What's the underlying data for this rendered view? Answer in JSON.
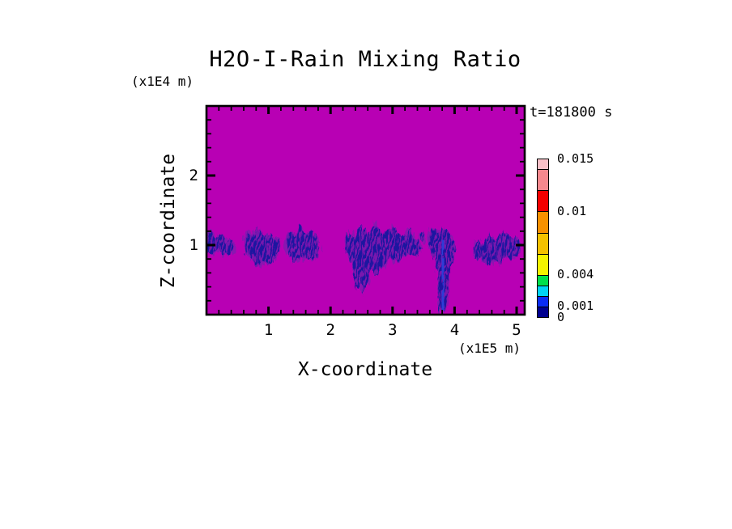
{
  "title": "H2O-I-Rain Mixing Ratio",
  "timestamp": "t=181800 s",
  "colors": {
    "field_background": "#b800b4",
    "rain_dark": "#1d18a0",
    "rain_fringe": "#8a14b0",
    "rain_bright_core": "#2e3cd6",
    "frame": "#000000",
    "text": "#000000"
  },
  "chart_data": {
    "type": "heatmap",
    "title": "H2O-I-Rain Mixing Ratio",
    "time_annotation": "t=181800 s",
    "xlabel": "X-coordinate",
    "ylabel": "Z-coordinate",
    "x_unit_label": "(x1E5 m)",
    "y_unit_label": "(x1E4 m)",
    "xlim": [
      0,
      5.13
    ],
    "ylim": [
      0,
      3.0
    ],
    "x_tick_values": [
      1,
      2,
      3,
      4,
      5
    ],
    "x_tick_labels": [
      "1",
      "2",
      "3",
      "4",
      "5"
    ],
    "y_tick_values": [
      1,
      2
    ],
    "y_tick_labels": [
      "1",
      "2"
    ],
    "minor_tick_step": 0.2,
    "grid": false,
    "legend_position": "right-colorbar",
    "field_note": "magenta background = near-zero rain mixing ratio; dark blue cells = rain regions around z=1",
    "colorbar": {
      "value_max": 0.015,
      "levels_bottom_to_top": [
        0,
        0.001,
        0.002,
        0.003,
        0.004,
        0.006,
        0.008,
        0.01,
        0.012,
        0.014,
        0.015
      ],
      "segment_colors_bottom_to_top": [
        "#00008f",
        "#0a2cf4",
        "#00d4f4",
        "#00e04c",
        "#f4f400",
        "#f4c100",
        "#f79100",
        "#f40000",
        "#f5888e",
        "#f8c0c8"
      ],
      "labels": [
        {
          "text": "0.015",
          "value": 0.015
        },
        {
          "text": "0.01",
          "value": 0.01
        },
        {
          "text": "0.004",
          "value": 0.004
        },
        {
          "text": "0.001",
          "value": 0.001
        },
        {
          "text": "0",
          "value": 0
        }
      ]
    },
    "rain_cells": [
      {
        "name": "cell-1",
        "poly": [
          [
            0,
            1.18
          ],
          [
            0.08,
            1.21
          ],
          [
            0.16,
            1.1
          ],
          [
            0.24,
            1.16
          ],
          [
            0.33,
            1.05
          ],
          [
            0.42,
            1.08
          ],
          [
            0.47,
            0.98
          ],
          [
            0.4,
            0.9
          ],
          [
            0.3,
            0.84
          ],
          [
            0.2,
            0.95
          ],
          [
            0.1,
            0.86
          ],
          [
            0.02,
            0.92
          ]
        ]
      },
      {
        "name": "cell-2",
        "poly": [
          [
            0.6,
            1.02
          ],
          [
            0.66,
            1.2
          ],
          [
            0.74,
            1.1
          ],
          [
            0.82,
            1.25
          ],
          [
            0.92,
            1.12
          ],
          [
            1.0,
            1.18
          ],
          [
            1.1,
            1.08
          ],
          [
            1.18,
            1.12
          ],
          [
            1.2,
            0.98
          ],
          [
            1.12,
            0.82
          ],
          [
            1.0,
            0.72
          ],
          [
            0.9,
            0.78
          ],
          [
            0.8,
            0.7
          ],
          [
            0.72,
            0.82
          ],
          [
            0.63,
            0.88
          ]
        ]
      },
      {
        "name": "cell-3",
        "poly": [
          [
            1.27,
            1.02
          ],
          [
            1.33,
            1.22
          ],
          [
            1.42,
            1.12
          ],
          [
            1.52,
            1.28
          ],
          [
            1.62,
            1.14
          ],
          [
            1.72,
            1.2
          ],
          [
            1.8,
            1.05
          ],
          [
            1.84,
            0.92
          ],
          [
            1.76,
            0.82
          ],
          [
            1.64,
            0.78
          ],
          [
            1.52,
            0.84
          ],
          [
            1.42,
            0.76
          ],
          [
            1.33,
            0.86
          ]
        ]
      },
      {
        "name": "cell-4",
        "poly": [
          [
            2.22,
            0.98
          ],
          [
            2.28,
            1.2
          ],
          [
            2.38,
            1.08
          ],
          [
            2.48,
            1.3
          ],
          [
            2.6,
            1.16
          ],
          [
            2.72,
            1.31
          ],
          [
            2.86,
            1.15
          ],
          [
            3.0,
            1.28
          ],
          [
            3.14,
            1.12
          ],
          [
            3.28,
            1.22
          ],
          [
            3.4,
            1.08
          ],
          [
            3.47,
            0.96
          ],
          [
            3.38,
            0.84
          ],
          [
            3.24,
            0.9
          ],
          [
            3.1,
            0.76
          ],
          [
            2.95,
            0.84
          ],
          [
            2.82,
            0.68
          ],
          [
            2.72,
            0.55
          ],
          [
            2.66,
            0.7
          ],
          [
            2.58,
            0.42
          ],
          [
            2.52,
            0.3
          ],
          [
            2.47,
            0.55
          ],
          [
            2.42,
            0.35
          ],
          [
            2.38,
            0.62
          ],
          [
            2.32,
            0.8
          ],
          [
            2.26,
            0.88
          ]
        ]
      },
      {
        "name": "cell-5-speck",
        "poly": [
          [
            3.44,
            1.16
          ],
          [
            3.5,
            1.2
          ],
          [
            3.52,
            1.08
          ],
          [
            3.46,
            1.04
          ]
        ]
      },
      {
        "name": "cell-6-shaft",
        "poly": [
          [
            3.58,
            1.08
          ],
          [
            3.64,
            1.24
          ],
          [
            3.72,
            1.16
          ],
          [
            3.8,
            1.25
          ],
          [
            3.9,
            1.18
          ],
          [
            3.98,
            1.05
          ],
          [
            4.0,
            0.92
          ],
          [
            3.94,
            0.78
          ],
          [
            3.9,
            0.55
          ],
          [
            3.88,
            0.32
          ],
          [
            3.87,
            0.06
          ],
          [
            3.82,
            0.0
          ],
          [
            3.8,
            0.28
          ],
          [
            3.78,
            0.06
          ],
          [
            3.75,
            0.0
          ],
          [
            3.73,
            0.3
          ],
          [
            3.74,
            0.55
          ],
          [
            3.7,
            0.75
          ],
          [
            3.64,
            0.9
          ],
          [
            3.59,
            1.0
          ]
        ],
        "core": [
          [
            3.82,
            1.05
          ],
          [
            3.8,
            0.7
          ],
          [
            3.81,
            0.4
          ],
          [
            3.8,
            0.08
          ]
        ]
      },
      {
        "name": "cell-7",
        "poly": [
          [
            4.3,
            0.93
          ],
          [
            4.37,
            1.08
          ],
          [
            4.46,
            1.0
          ],
          [
            4.56,
            1.16
          ],
          [
            4.66,
            1.06
          ],
          [
            4.78,
            1.2
          ],
          [
            4.9,
            1.1
          ],
          [
            5.0,
            1.12
          ],
          [
            5.07,
            1.0
          ],
          [
            5.02,
            0.88
          ],
          [
            4.92,
            0.8
          ],
          [
            4.82,
            0.86
          ],
          [
            4.72,
            0.7
          ],
          [
            4.62,
            0.78
          ],
          [
            4.52,
            0.7
          ],
          [
            4.42,
            0.82
          ],
          [
            4.34,
            0.8
          ]
        ]
      }
    ]
  }
}
